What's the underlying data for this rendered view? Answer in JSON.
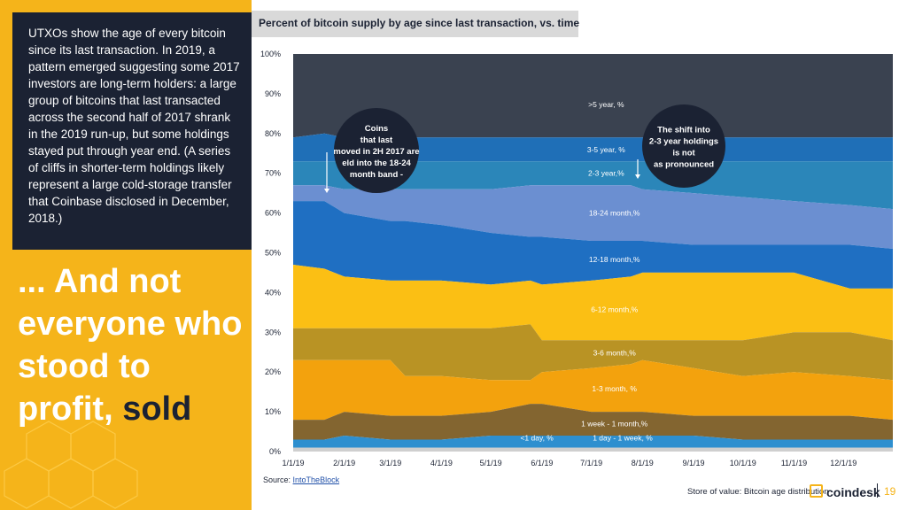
{
  "left_panel": {
    "quote": "UTXOs show the age of every bitcoin since its last transaction. In 2019, a pattern emerged suggesting some 2017 investors are long-term holders: a large group of bitcoins that last transacted across the second half of 2017 shrank in the 2019 run-up, but some holdings stayed put through year end. (A series of cliffs in shorter-term holdings likely represent a large cold-storage transfer that Coinbase disclosed in December, 2018.)",
    "headline_part1": "... And not everyone who stood to profit,",
    "headline_part2": "sold"
  },
  "chart_title": "Percent of bitcoin supply by age since last transaction, vs. time",
  "source_label": "Source:",
  "source_link": "IntoTheBlock",
  "footer": {
    "caption": "Store of value: Bitcoin age distribution",
    "brand": "coindesk",
    "page_number": "19"
  },
  "colors": {
    "dark_navy": "#1b2233",
    "yellow": "#f5b41a",
    "gt5y": "#3a4250",
    "y3to5": "#1f6fb7",
    "y2to3": "#2b86b9",
    "m18to24": "#6b8fd1",
    "m12to18": "#1f6fc2",
    "m6to12": "#fbbf14",
    "m3to6": "#b99324",
    "m1to3": "#f3a20d",
    "w1tom1": "#836530",
    "d1tow1": "#2e8fcf",
    "lt1d": "#cfcfcf"
  },
  "callouts": [
    {
      "text": "Coins that last moved in 2H 2017 are held into the 18-24 -month band"
    },
    {
      "text": "The shift into 2-3 year holdings is not as pronounced"
    }
  ],
  "chart_data": {
    "type": "area",
    "title": "Percent of bitcoin supply by age since last transaction, vs. time",
    "stacking": "cumulative",
    "x": [
      "1/1/19",
      "1/20/19",
      "2/1/19",
      "3/1/19",
      "3/10/19",
      "4/1/19",
      "5/1/19",
      "5/25/19",
      "6/1/19",
      "7/1/19",
      "7/25/19",
      "8/1/19",
      "9/1/19",
      "10/1/19",
      "11/1/19",
      "12/5/19",
      "12/31/19"
    ],
    "x_ticks": [
      "1/1/19",
      "2/1/19",
      "3/1/19",
      "4/1/19",
      "5/1/19",
      "6/1/19",
      "7/1/19",
      "8/1/19",
      "9/1/19",
      "10/1/19",
      "11/1/19",
      "12/1/19"
    ],
    "y_ticks": [
      "0%",
      "10%",
      "20%",
      "30%",
      "40%",
      "50%",
      "60%",
      "70%",
      "80%",
      "90%",
      "100%"
    ],
    "ylim": [
      0,
      100
    ],
    "grid": false,
    "legend": "inline labels",
    "series_upper_bounds": [
      {
        "name": "<1 day, %",
        "color_key": "lt1d",
        "values": [
          1,
          1,
          1,
          1,
          1,
          1,
          1,
          1,
          1,
          1,
          1,
          1,
          1,
          1,
          1,
          1,
          1
        ]
      },
      {
        "name": "1 day - 1 week, %",
        "color_key": "d1tow1",
        "values": [
          3,
          3,
          4,
          3,
          3,
          3,
          4,
          4,
          4,
          4,
          4,
          4,
          4,
          3,
          3,
          3,
          3
        ]
      },
      {
        "name": "1 week - 1 month,%",
        "color_key": "w1tom1",
        "values": [
          8,
          8,
          10,
          9,
          9,
          9,
          10,
          12,
          12,
          10,
          10,
          10,
          9,
          9,
          9,
          9,
          8
        ]
      },
      {
        "name": "1-3 month, %",
        "color_key": "m1to3",
        "values": [
          23,
          23,
          23,
          23,
          19,
          19,
          18,
          18,
          20,
          21,
          22,
          23,
          21,
          19,
          20,
          19,
          18
        ]
      },
      {
        "name": "3-6 month,%",
        "color_key": "m3to6",
        "values": [
          31,
          31,
          31,
          31,
          31,
          31,
          31,
          32,
          28,
          28,
          28,
          28,
          28,
          28,
          30,
          30,
          28
        ]
      },
      {
        "name": "6-12 month,%",
        "color_key": "m6to12",
        "values": [
          47,
          46,
          44,
          43,
          43,
          43,
          42,
          43,
          42,
          43,
          44,
          45,
          45,
          45,
          45,
          41,
          41
        ]
      },
      {
        "name": "12-18 month,%",
        "color_key": "m12to18",
        "values": [
          63,
          63,
          60,
          58,
          58,
          57,
          55,
          54,
          54,
          53,
          53,
          53,
          52,
          52,
          52,
          52,
          51
        ]
      },
      {
        "name": "18-24 month,%",
        "color_key": "m18to24",
        "values": [
          67,
          67,
          66,
          66,
          66,
          66,
          66,
          67,
          67,
          67,
          67,
          66,
          65,
          64,
          63,
          62,
          61
        ]
      },
      {
        "name": "2-3 year,%",
        "color_key": "y2to3",
        "values": [
          73,
          73,
          73,
          73,
          73,
          73,
          73,
          73,
          73,
          73,
          73,
          73,
          73,
          73,
          73,
          73,
          73
        ]
      },
      {
        "name": "3-5 year, %",
        "color_key": "y3to5",
        "values": [
          79,
          80,
          79,
          79,
          79,
          79,
          79,
          79,
          79,
          79,
          79,
          79,
          79,
          79,
          79,
          79,
          79
        ]
      },
      {
        "name": ">5 year, %",
        "color_key": "gt5y",
        "values": [
          100,
          100,
          100,
          100,
          100,
          100,
          100,
          100,
          100,
          100,
          100,
          100,
          100,
          100,
          100,
          100,
          100
        ]
      }
    ]
  }
}
